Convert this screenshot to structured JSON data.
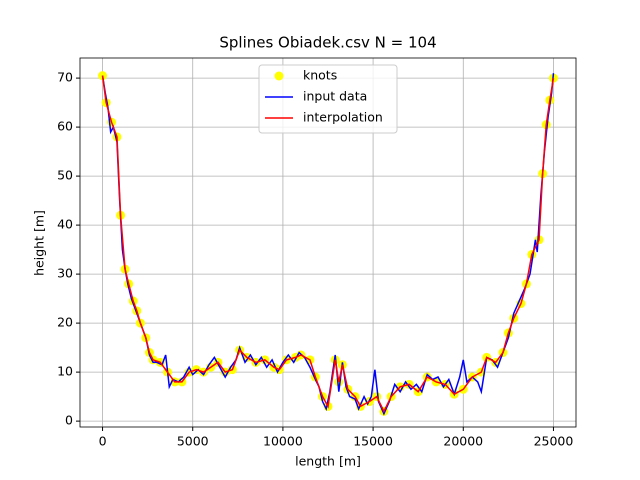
{
  "chart_data": {
    "type": "line",
    "title": "Splines Obiadek.csv N = 104",
    "xlabel": "length [m]",
    "ylabel": "height [m]",
    "xlim": [
      -1250,
      26250
    ],
    "ylim": [
      -1.2,
      74.1
    ],
    "xticks": [
      0,
      5000,
      10000,
      15000,
      20000,
      25000
    ],
    "yticks": [
      0,
      10,
      20,
      30,
      40,
      50,
      60,
      70
    ],
    "grid": true,
    "legend": "upper center",
    "series": [
      {
        "name": "knots",
        "type": "scatter",
        "color": "#ffff00",
        "x": [
          0,
          200,
          500,
          800,
          1000,
          1250,
          1450,
          1700,
          1900,
          2100,
          2400,
          2600,
          2800,
          3200,
          3600,
          4000,
          4400,
          4800,
          5200,
          5600,
          6000,
          6400,
          6800,
          7200,
          7600,
          8000,
          8500,
          9000,
          9500,
          9800,
          10200,
          10700,
          11000,
          11500,
          11800,
          12200,
          12500,
          12900,
          13100,
          13300,
          13600,
          14000,
          14300,
          14800,
          15200,
          15600,
          16000,
          16500,
          17000,
          17500,
          18000,
          18500,
          19000,
          19500,
          20000,
          20500,
          21000,
          21300,
          21800,
          22200,
          22500,
          22800,
          23200,
          23500,
          23800,
          24200,
          24400,
          24600,
          24800,
          25000
        ],
        "values": [
          70.5,
          65,
          61,
          58,
          42,
          31,
          28,
          24.5,
          22.5,
          20,
          17,
          14,
          12.5,
          12,
          10,
          8,
          8,
          10,
          10.5,
          10,
          11,
          12,
          10,
          10.5,
          14.5,
          13,
          12,
          12.5,
          11,
          10.5,
          12.5,
          13,
          13.5,
          12.5,
          9,
          5,
          3,
          12.5,
          8,
          11.5,
          6.5,
          5,
          3,
          4,
          5,
          2,
          5,
          7,
          7.5,
          6,
          9,
          8,
          7.5,
          5.5,
          6.5,
          9,
          10,
          13,
          12,
          14,
          18,
          21,
          24,
          28,
          34,
          37,
          50.5,
          60.5,
          65.5,
          70
        ]
      },
      {
        "name": "input data",
        "type": "line",
        "color": "#0000ff",
        "x": [
          0,
          150,
          300,
          450,
          600,
          800,
          950,
          1100,
          1250,
          1400,
          1600,
          1800,
          2000,
          2200,
          2400,
          2600,
          2800,
          3000,
          3300,
          3500,
          3700,
          3900,
          4200,
          4500,
          4800,
          5000,
          5300,
          5600,
          5900,
          6200,
          6500,
          6800,
          7100,
          7400,
          7600,
          7900,
          8200,
          8500,
          8800,
          9100,
          9400,
          9700,
          10000,
          10300,
          10600,
          10900,
          11200,
          11500,
          11800,
          12000,
          12200,
          12400,
          12600,
          12900,
          13100,
          13300,
          13500,
          13700,
          14000,
          14200,
          14500,
          14700,
          14900,
          15100,
          15300,
          15600,
          15900,
          16200,
          16500,
          16800,
          17100,
          17400,
          17700,
          18000,
          18300,
          18600,
          18900,
          19200,
          19500,
          19800,
          20000,
          20200,
          20500,
          20800,
          21000,
          21300,
          21600,
          21900,
          22200,
          22500,
          22800,
          23100,
          23400,
          23700,
          24000,
          24100,
          24300,
          24500,
          24700,
          24900,
          25000
        ],
        "values": [
          70.5,
          67,
          64,
          59,
          60,
          57,
          45,
          35,
          31,
          28,
          25,
          23,
          21,
          19,
          17,
          13.5,
          12,
          12,
          11.5,
          13.5,
          7,
          8.5,
          8,
          9,
          11,
          9.5,
          10.5,
          9.5,
          11.5,
          13,
          11,
          9,
          11,
          12.5,
          15,
          12,
          13.5,
          11.5,
          13,
          11,
          12.5,
          10,
          12,
          13.5,
          12,
          14,
          13,
          11,
          8.5,
          7,
          4,
          2.5,
          6,
          13.5,
          6,
          12,
          7,
          5,
          4.5,
          2.5,
          5,
          3.5,
          5,
          10.5,
          4,
          1.5,
          4,
          7.5,
          6,
          8,
          6.5,
          7.5,
          6,
          9.5,
          8.5,
          9,
          7,
          8.5,
          5.5,
          9,
          12.5,
          8,
          9,
          8,
          6,
          13,
          12.5,
          11,
          14,
          17,
          22,
          24.5,
          27,
          30,
          37,
          34.5,
          46,
          55,
          62,
          67,
          71
        ]
      },
      {
        "name": "interpolation",
        "type": "line",
        "color": "#ff0000",
        "x": [
          0,
          200,
          500,
          800,
          1000,
          1250,
          1450,
          1700,
          1900,
          2100,
          2400,
          2600,
          2800,
          3200,
          3600,
          4000,
          4400,
          4800,
          5200,
          5600,
          6000,
          6400,
          6800,
          7200,
          7600,
          8000,
          8500,
          9000,
          9500,
          9800,
          10200,
          10700,
          11000,
          11500,
          11800,
          12200,
          12500,
          12900,
          13100,
          13300,
          13600,
          14000,
          14300,
          14800,
          15200,
          15600,
          16000,
          16500,
          17000,
          17500,
          18000,
          18500,
          19000,
          19500,
          20000,
          20500,
          21000,
          21300,
          21800,
          22200,
          22500,
          22800,
          23200,
          23500,
          23800,
          24200,
          24400,
          24600,
          24800,
          25000
        ],
        "values": [
          70.5,
          65,
          61,
          58,
          42,
          31,
          28,
          24.5,
          22.5,
          20,
          17,
          14,
          12.5,
          12,
          10,
          8,
          8,
          10,
          10.5,
          10,
          11,
          12,
          10,
          10.5,
          14.5,
          13,
          12,
          12.5,
          11,
          10.5,
          12.5,
          13,
          13.5,
          12.5,
          9,
          5,
          3,
          12.5,
          8,
          11.5,
          6.5,
          5,
          3,
          4,
          5,
          2,
          5,
          7,
          7.5,
          6,
          9,
          8,
          7.5,
          5.5,
          6.5,
          9,
          10,
          13,
          12,
          14,
          18,
          21,
          24,
          28,
          34,
          37,
          50.5,
          60.5,
          65.5,
          70
        ]
      }
    ]
  }
}
